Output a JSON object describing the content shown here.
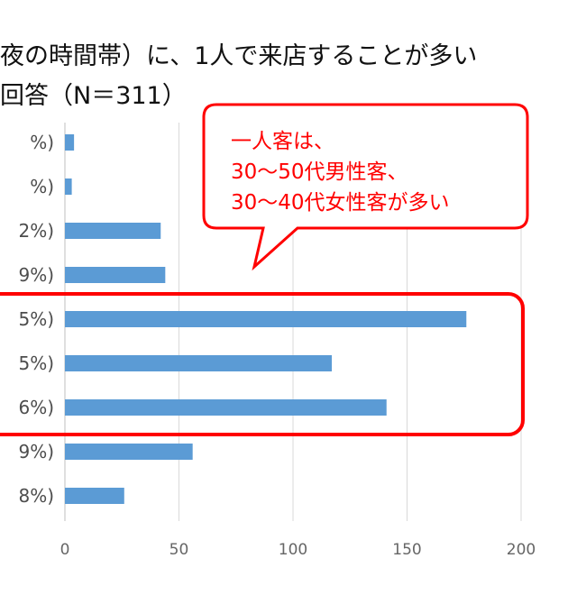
{
  "page": {
    "title_line1": "夜の時間帯）に、1人で来店することが多い",
    "title_line2": "回答（N＝311）"
  },
  "chart_data": {
    "type": "bar",
    "orientation": "horizontal",
    "categories": [
      "%)",
      "%)",
      "2%)",
      "9%)",
      "5%)",
      "5%)",
      "6%)",
      "9%)",
      "8%)"
    ],
    "values": [
      4,
      3,
      42,
      44,
      176,
      117,
      141,
      56,
      26
    ],
    "xlim": [
      0,
      200
    ],
    "ticks": [
      "0",
      "50",
      "100",
      "150",
      "200"
    ],
    "grid": true,
    "bar_color": "#5b9bd5",
    "highlight": {
      "rows": [
        4,
        5,
        6
      ],
      "color": "#ff0000"
    },
    "callout": {
      "lines": [
        "一人客は、",
        "30～50代男性客、",
        "30～40代女性客が多い"
      ],
      "color": "#ff0000"
    }
  }
}
